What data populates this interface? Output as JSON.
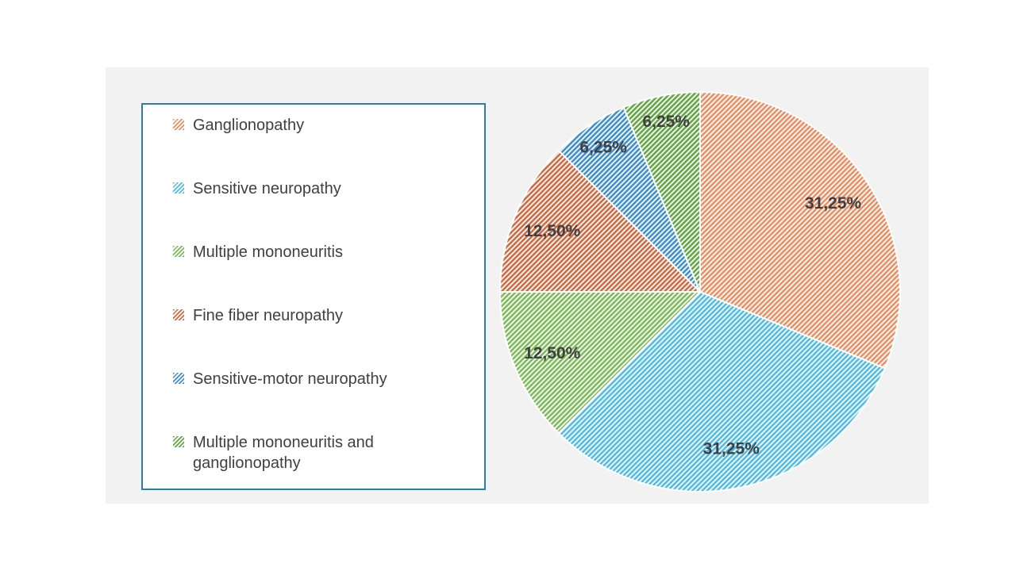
{
  "chart_data": {
    "type": "pie",
    "title": "",
    "legend_position": "left",
    "direction": "clockwise",
    "start_angle_deg": 0,
    "hatch_style": "diagonal-lines",
    "decimal_separator": ",",
    "label_color": "#404040",
    "legend_border_color": "#2F7E9B",
    "panel_background": "#F2F2F2",
    "slices": [
      {
        "label": "Ganglionopathy",
        "value": 31.25,
        "display": "31,25%",
        "color": "#EC8E62"
      },
      {
        "label": "Sensitive neuropathy",
        "value": 31.25,
        "display": "31,25%",
        "color": "#4FBCE8"
      },
      {
        "label": "Multiple mononeuritis",
        "value": 12.5,
        "display": "12,50%",
        "color": "#7CBB59"
      },
      {
        "label": "Fine fiber neuropathy",
        "value": 12.5,
        "display": "12,50%",
        "color": "#D2683F"
      },
      {
        "label": "Sensitive-motor neuropathy",
        "value": 6.25,
        "display": "6,25%",
        "color": "#3E8FD0"
      },
      {
        "label": "Multiple mononeuritis and ganglionopathy",
        "value": 6.25,
        "display": "6,25%",
        "color": "#62A744"
      }
    ]
  }
}
